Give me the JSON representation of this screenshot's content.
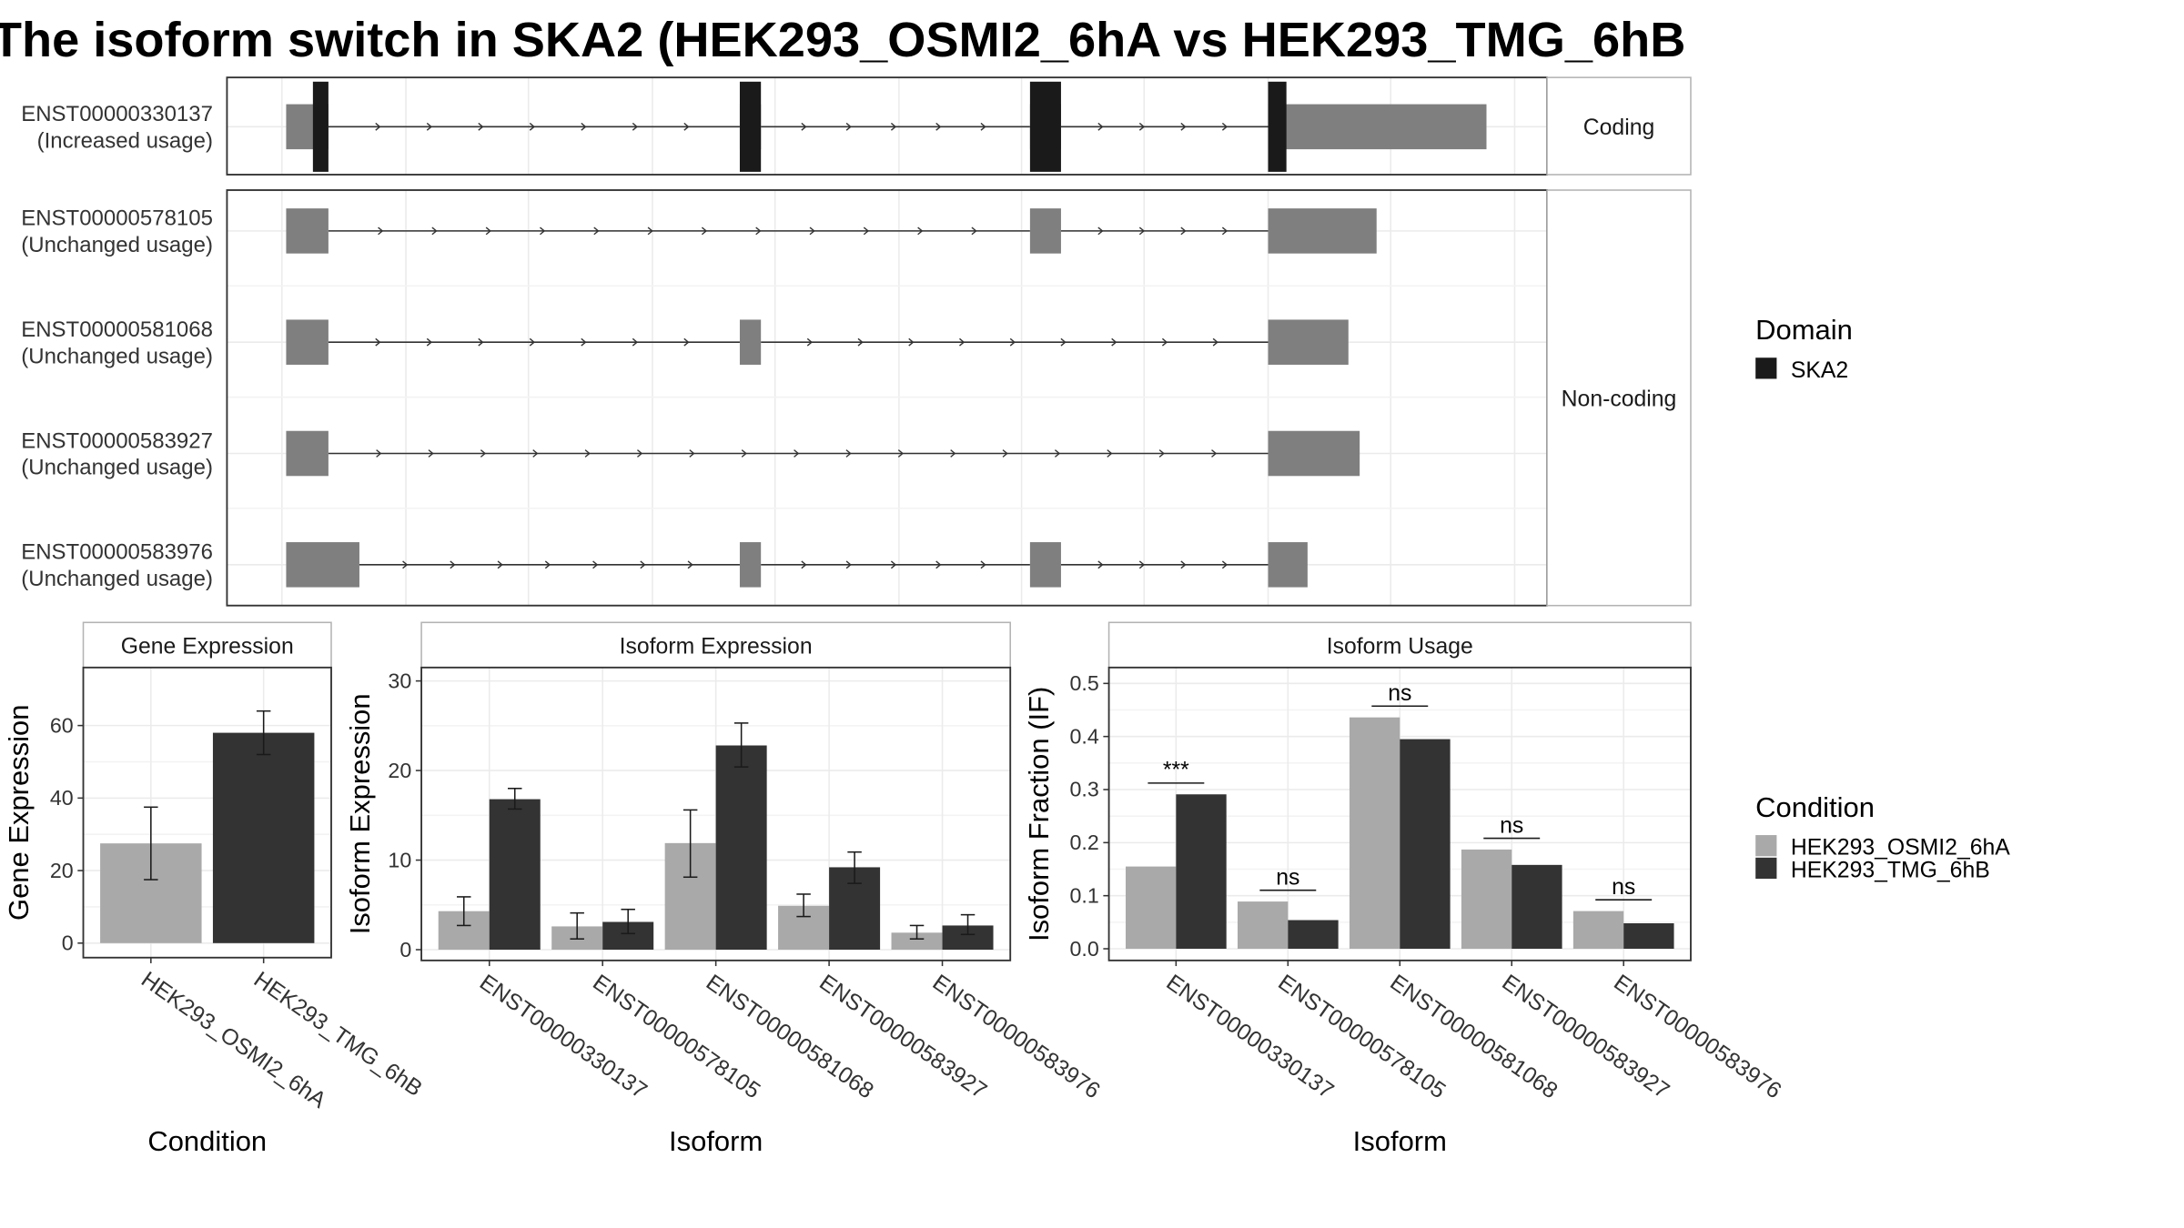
{
  "title": "The isoform switch in SKA2 (HEK293_OSMI2_6hA vs HEK293_TMG_6hB",
  "colors": {
    "cond1": "#a9a9a9",
    "cond2": "#333333",
    "domain": "#1a1a1a",
    "noncoding": "#7f7f7f",
    "grid": "#ebebeb",
    "strip_border": "#b3b3b3"
  },
  "structure": {
    "coding_label": "Coding",
    "noncoding_label": "Non-coding",
    "legend_title": "Domain",
    "legend_item": "SKA2",
    "isoforms": [
      {
        "id": "ENST00000330137",
        "usage": "(Increased usage)",
        "group": "Coding",
        "exons": [
          [
            203,
            233
          ],
          [
            525,
            540
          ],
          [
            731,
            753
          ],
          [
            900,
            1055
          ]
        ],
        "domains": [
          [
            222,
            233
          ],
          [
            525,
            540
          ],
          [
            731,
            753
          ],
          [
            900,
            913
          ]
        ]
      },
      {
        "id": "ENST00000578105",
        "usage": "(Unchanged usage)",
        "group": "Non-coding",
        "exons": [
          [
            203,
            233
          ],
          [
            731,
            753
          ],
          [
            900,
            977
          ]
        ],
        "domains": []
      },
      {
        "id": "ENST00000581068",
        "usage": "(Unchanged usage)",
        "group": "Non-coding",
        "exons": [
          [
            203,
            233
          ],
          [
            525,
            540
          ],
          [
            900,
            957
          ]
        ],
        "domains": []
      },
      {
        "id": "ENST00000583927",
        "usage": "(Unchanged usage)",
        "group": "Non-coding",
        "exons": [
          [
            203,
            233
          ],
          [
            900,
            965
          ]
        ],
        "domains": []
      },
      {
        "id": "ENST00000583976",
        "usage": "(Unchanged usage)",
        "group": "Non-coding",
        "exons": [
          [
            203,
            255
          ],
          [
            525,
            540
          ],
          [
            731,
            753
          ],
          [
            900,
            928
          ]
        ],
        "domains": []
      }
    ]
  },
  "chart_data": [
    {
      "type": "bar",
      "title": "Gene Expression",
      "xlabel": "Condition",
      "ylabel": "Gene Expression",
      "ylim": [
        -4,
        76
      ],
      "yticks": [
        0,
        20,
        40,
        60
      ],
      "categories": [
        "HEK293_OSMI2_6hA",
        "HEK293_TMG_6hB"
      ],
      "values": [
        27.5,
        58.0
      ],
      "error_low": [
        17.5,
        52.0
      ],
      "error_high": [
        37.5,
        64.0
      ]
    },
    {
      "type": "bar",
      "title": "Isoform Expression",
      "xlabel": "Isoform",
      "ylabel": "Isoform Expression",
      "ylim": [
        -1.2,
        31.5
      ],
      "yticks": [
        0,
        10,
        20,
        30
      ],
      "categories": [
        "ENST00000330137",
        "ENST00000578105",
        "ENST00000581068",
        "ENST00000583927",
        "ENST00000583976"
      ],
      "series": [
        {
          "name": "HEK293_OSMI2_6hA",
          "values": [
            4.3,
            2.6,
            11.9,
            4.9,
            1.9
          ],
          "error_low": [
            2.7,
            1.2,
            8.1,
            3.7,
            1.2
          ],
          "error_high": [
            5.9,
            4.1,
            15.6,
            6.2,
            2.7
          ]
        },
        {
          "name": "HEK293_TMG_6hB",
          "values": [
            16.8,
            3.1,
            22.8,
            9.2,
            2.7
          ],
          "error_low": [
            15.7,
            1.8,
            20.4,
            7.4,
            1.7
          ],
          "error_high": [
            18.0,
            4.5,
            25.3,
            10.9,
            3.9
          ]
        }
      ]
    },
    {
      "type": "bar",
      "title": "Isoform Usage",
      "xlabel": "Isoform",
      "ylabel": "Isoform Fraction (IF)",
      "ylim": [
        -0.022,
        0.53
      ],
      "yticks": [
        0.0,
        0.1,
        0.2,
        0.3,
        0.4,
        0.5
      ],
      "ytick_labels": [
        "0.0",
        "0.1",
        "0.2",
        "0.3",
        "0.4",
        "0.5"
      ],
      "categories": [
        "ENST00000330137",
        "ENST00000578105",
        "ENST00000581068",
        "ENST00000583927",
        "ENST00000583976"
      ],
      "series": [
        {
          "name": "HEK293_OSMI2_6hA",
          "values": [
            0.155,
            0.089,
            0.436,
            0.187,
            0.071
          ]
        },
        {
          "name": "HEK293_TMG_6hB",
          "values": [
            0.291,
            0.054,
            0.395,
            0.158,
            0.048
          ]
        }
      ],
      "significance": [
        "***",
        "ns",
        "ns",
        "ns",
        "ns"
      ]
    }
  ],
  "condition_legend": {
    "title": "Condition",
    "items": [
      "HEK293_OSMI2_6hA",
      "HEK293_TMG_6hB"
    ]
  }
}
